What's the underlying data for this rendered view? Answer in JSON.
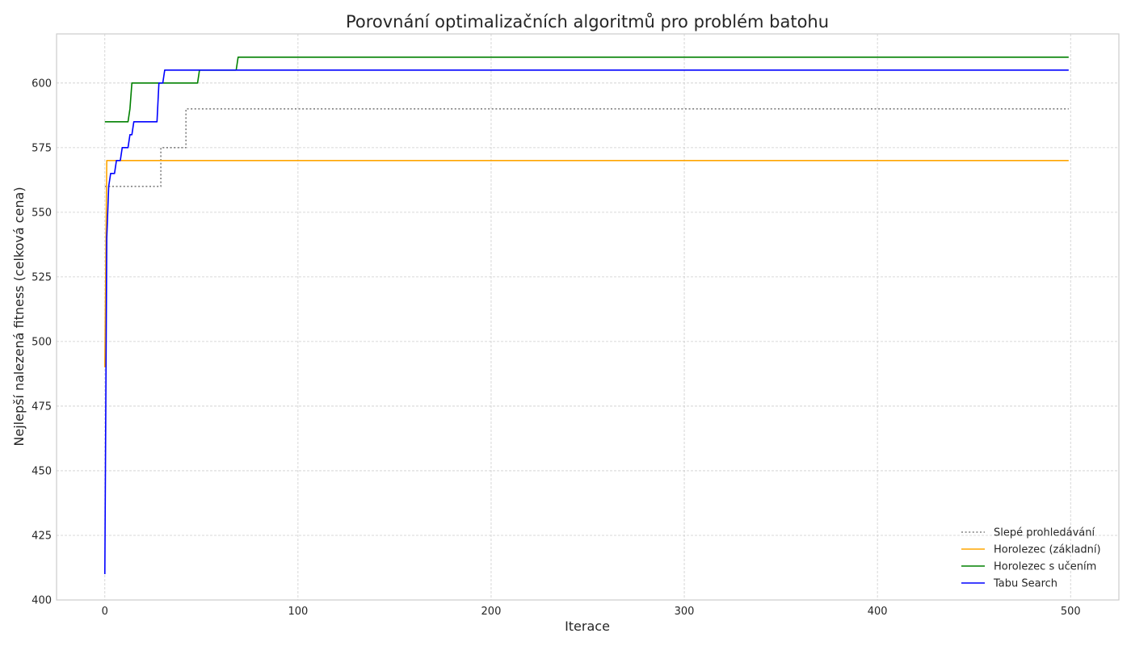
{
  "chart_data": {
    "type": "line",
    "title": "Porovnání optimalizačních algoritmů pro problém batohu",
    "xlabel": "Iterace",
    "ylabel": "Nejlepší nalezená fitness (celková cena)",
    "xlim": [
      -25,
      525
    ],
    "ylim": [
      400,
      619
    ],
    "xticks": [
      0,
      100,
      200,
      300,
      400,
      500
    ],
    "yticks": [
      400,
      425,
      450,
      475,
      500,
      525,
      550,
      575,
      600
    ],
    "grid": true,
    "legend_position": "bottom-right",
    "series": [
      {
        "name": "Slepé prohledávání",
        "color": "#808080",
        "style": "dotted",
        "step": true,
        "points": [
          [
            0,
            560
          ],
          [
            28,
            560
          ],
          [
            29,
            575
          ],
          [
            41,
            575
          ],
          [
            42,
            590
          ],
          [
            499,
            590
          ]
        ]
      },
      {
        "name": "Horolezec (základní)",
        "color": "#ffa500",
        "style": "solid",
        "step": false,
        "points": [
          [
            0,
            490
          ],
          [
            1,
            570
          ],
          [
            499,
            570
          ]
        ]
      },
      {
        "name": "Horolezec s učením",
        "color": "#008000",
        "style": "solid",
        "step": false,
        "points": [
          [
            0,
            585
          ],
          [
            12,
            585
          ],
          [
            13,
            590
          ],
          [
            14,
            600
          ],
          [
            48,
            600
          ],
          [
            49,
            605
          ],
          [
            68,
            605
          ],
          [
            69,
            610
          ],
          [
            499,
            610
          ]
        ]
      },
      {
        "name": "Tabu Search",
        "color": "#0000ff",
        "style": "solid",
        "step": false,
        "points": [
          [
            0,
            410
          ],
          [
            1,
            540
          ],
          [
            2,
            560
          ],
          [
            3,
            565
          ],
          [
            5,
            565
          ],
          [
            6,
            570
          ],
          [
            8,
            570
          ],
          [
            9,
            575
          ],
          [
            12,
            575
          ],
          [
            13,
            580
          ],
          [
            14,
            580
          ],
          [
            15,
            585
          ],
          [
            27,
            585
          ],
          [
            28,
            600
          ],
          [
            30,
            600
          ],
          [
            31,
            605
          ],
          [
            499,
            605
          ]
        ]
      }
    ]
  }
}
